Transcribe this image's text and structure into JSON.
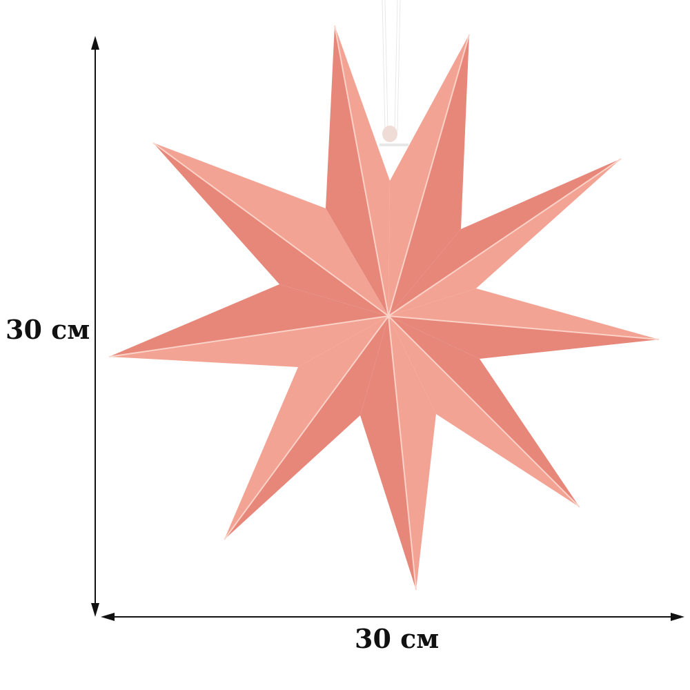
{
  "product": {
    "height_label": "30 см",
    "width_label": "30 см",
    "colors": {
      "paper_light": "#f3a394",
      "paper_dark": "#e6877a",
      "fold_line": "#fbd3c8",
      "arrow": "#111111",
      "string": "#ffffff"
    },
    "icon": "nine-point-paper-star"
  }
}
